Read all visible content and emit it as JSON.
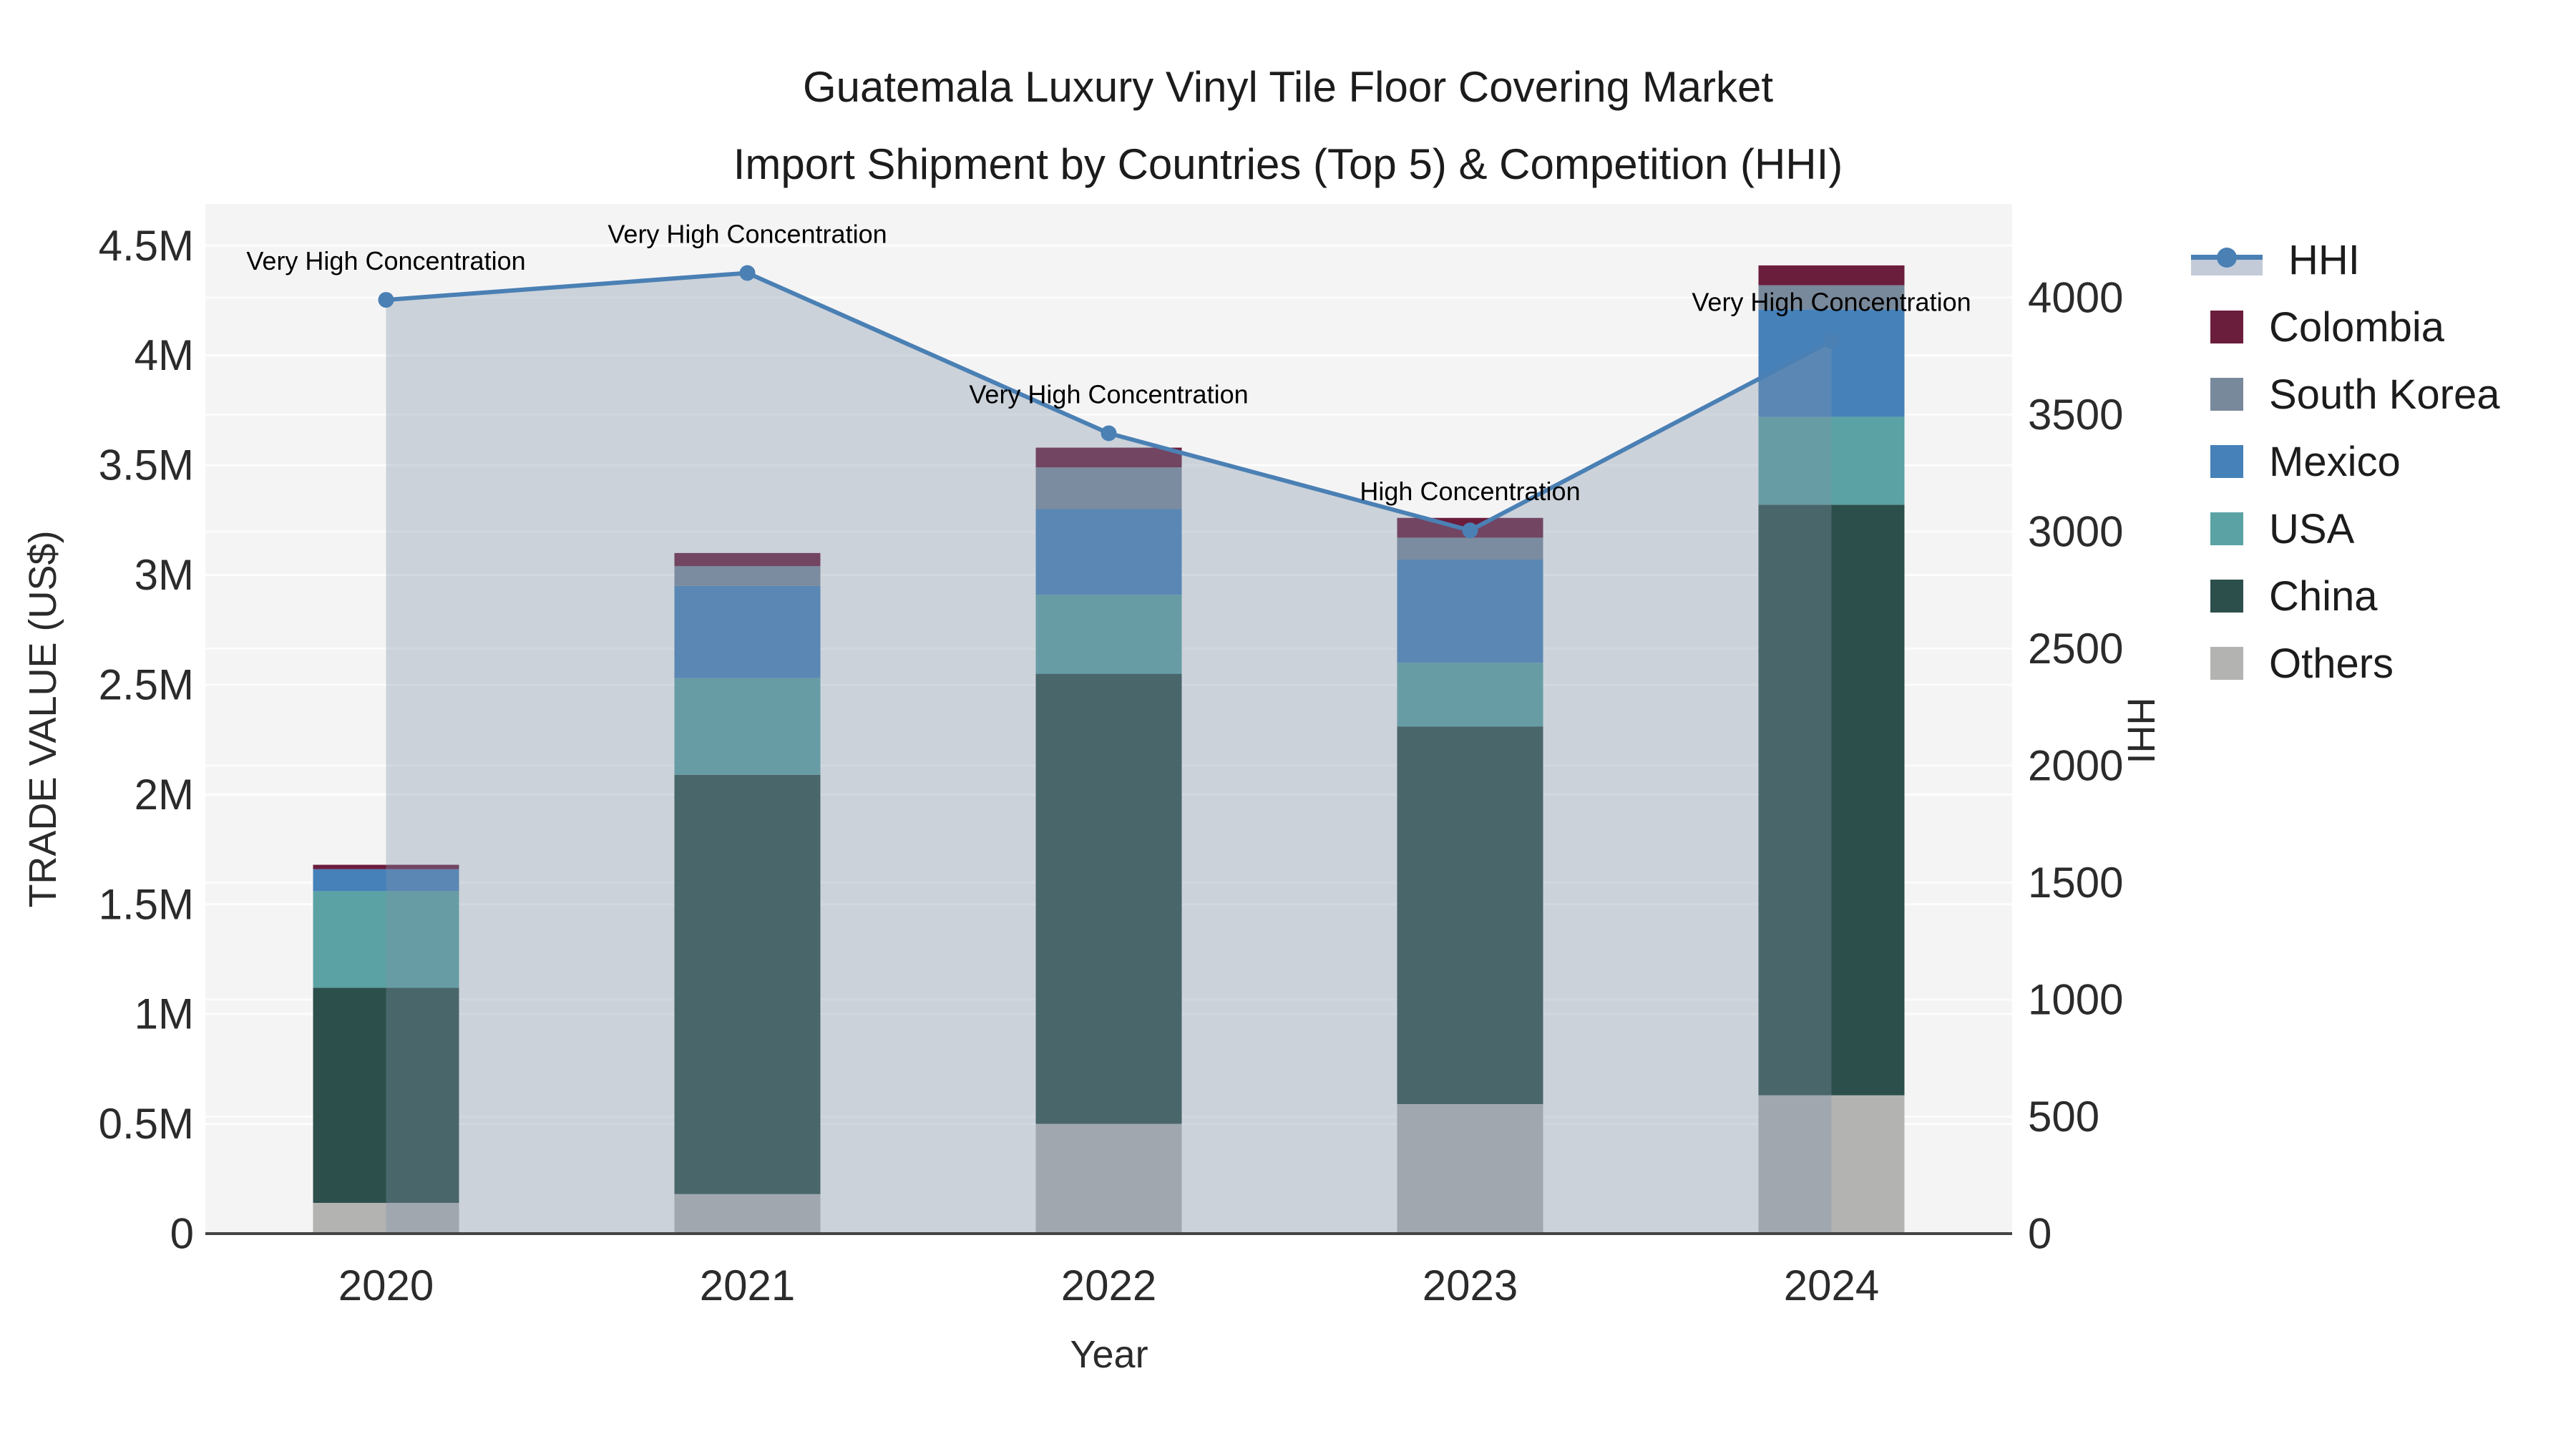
{
  "title": {
    "line1": "Guatemala Luxury Vinyl Tile Floor Covering Market",
    "line2": "Import Shipment by Countries (Top 5) & Competition (HHI)"
  },
  "legend": {
    "items": [
      {
        "label": "HHI",
        "type": "line",
        "color": "#4a80b4"
      },
      {
        "label": "Colombia",
        "type": "square",
        "color": "#6b1d3c"
      },
      {
        "label": "South Korea",
        "type": "square",
        "color": "#78899b"
      },
      {
        "label": "Mexico",
        "type": "square",
        "color": "#4681b9"
      },
      {
        "label": "USA",
        "type": "square",
        "color": "#5aa2a3"
      },
      {
        "label": "China",
        "type": "square",
        "color": "#2c4f4b"
      },
      {
        "label": "Others",
        "type": "square",
        "color": "#b3b3b2"
      }
    ]
  },
  "chart_data": {
    "type": "combo-stacked-bar-with-line",
    "categories": [
      "2020",
      "2021",
      "2022",
      "2023",
      "2024"
    ],
    "bar_stack_order_bottom_to_top": [
      "Others",
      "China",
      "USA",
      "Mexico",
      "South Korea",
      "Colombia"
    ],
    "bar_series": [
      {
        "name": "Others",
        "color": "#b3b3b2",
        "values_musd": [
          0.14,
          0.18,
          0.5,
          0.59,
          0.63
        ]
      },
      {
        "name": "China",
        "color": "#2c4f4b",
        "values_musd": [
          0.98,
          1.91,
          2.05,
          1.72,
          2.69
        ]
      },
      {
        "name": "USA",
        "color": "#5aa2a3",
        "values_musd": [
          0.44,
          0.44,
          0.36,
          0.29,
          0.4
        ]
      },
      {
        "name": "Mexico",
        "color": "#4681b9",
        "values_musd": [
          0.1,
          0.42,
          0.39,
          0.47,
          0.49
        ]
      },
      {
        "name": "South Korea",
        "color": "#78899b",
        "values_musd": [
          0.0,
          0.09,
          0.19,
          0.1,
          0.11
        ]
      },
      {
        "name": "Colombia",
        "color": "#6b1d3c",
        "values_musd": [
          0.02,
          0.06,
          0.09,
          0.09,
          0.09
        ]
      }
    ],
    "bar_totals_musd": [
      1.68,
      3.1,
      3.58,
      3.26,
      4.41
    ],
    "line_series": {
      "name": "HHI",
      "axis": "right",
      "color": "#4a80b4",
      "fill_color": "rgba(130,145,170,0.35)",
      "values": [
        3990,
        4105,
        3420,
        3005,
        3815
      ]
    },
    "annotations": [
      {
        "x": "2020",
        "text": "Very High Concentration"
      },
      {
        "x": "2021",
        "text": "Very High Concentration"
      },
      {
        "x": "2022",
        "text": "Very High Concentration"
      },
      {
        "x": "2023",
        "text": "High Concentration"
      },
      {
        "x": "2024",
        "text": "Very High Concentration"
      }
    ],
    "x": {
      "title": "Year"
    },
    "y_left": {
      "title": "TRADE VALUE (US$)",
      "range_musd": [
        0,
        4.69
      ],
      "tick_labels": [
        "0",
        "0.5M",
        "1M",
        "1.5M",
        "2M",
        "2.5M",
        "3M",
        "3.5M",
        "4M",
        "4.5M"
      ],
      "tick_values_musd": [
        0,
        0.5,
        1,
        1.5,
        2,
        2.5,
        3,
        3.5,
        4,
        4.5
      ]
    },
    "y_right": {
      "title": "HHI",
      "range": [
        0,
        4400
      ],
      "tick_labels": [
        "0",
        "500",
        "1000",
        "1500",
        "2000",
        "2500",
        "3000",
        "3500",
        "4000"
      ],
      "tick_values": [
        0,
        500,
        1000,
        1500,
        2000,
        2500,
        3000,
        3500,
        4000
      ]
    },
    "grid": true,
    "legend_position": "right",
    "plot_bg": "#f5f4f5",
    "grid_color": "#ffffff",
    "axis_line_color": "#444444",
    "tick_color": "#2b2b2b",
    "annotation_color": "#000000"
  }
}
